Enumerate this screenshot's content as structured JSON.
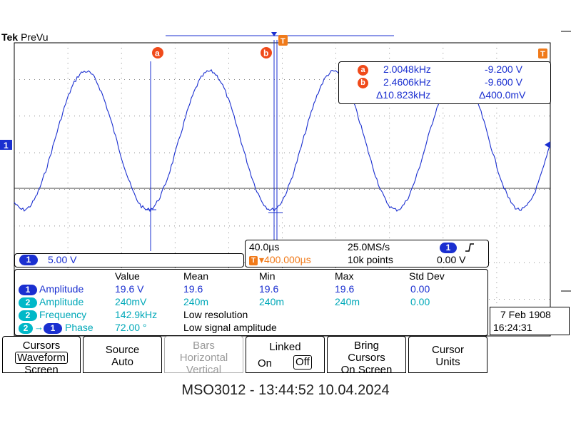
{
  "header": {
    "brand": "Tek",
    "mode": "PreVu"
  },
  "cursor_markers": {
    "a": "a",
    "b": "b",
    "trigger": "T",
    "ch1": "1"
  },
  "cursor_readout": {
    "a_freq": "2.0048kHz",
    "a_volt": "-9.200 V",
    "b_freq": "2.4606kHz",
    "b_volt": "-9.600 V",
    "delta_freq": "Δ10.823kHz",
    "delta_volt": "Δ400.0mV"
  },
  "channel_scale": {
    "channel": "1",
    "value": "5.00 V"
  },
  "timebase": {
    "time_div": "40.0µs",
    "sample_rate": "25.0MS/s",
    "trigger_channel": "1",
    "trigger_slope_icon": "rising-edge-icon",
    "delay": "▾400.000µs",
    "record": "10k points",
    "trigger_level": "0.00 V"
  },
  "measurements": {
    "headers": [
      "Value",
      "Mean",
      "Min",
      "Max",
      "Std Dev"
    ],
    "rows": [
      {
        "ch": "1",
        "ch2": "",
        "name": "Amplitude",
        "value": "19.6 V",
        "mean": "19.6",
        "min": "19.6",
        "max": "19.6",
        "std": "0.00",
        "color": "#1a2fd0"
      },
      {
        "ch": "2",
        "ch2": "",
        "name": "Amplitude",
        "value": "240mV",
        "mean": "240m",
        "min": "240m",
        "max": "240m",
        "std": "0.00",
        "color": "#00a8b8"
      },
      {
        "ch": "2",
        "ch2": "",
        "name": "Frequency",
        "value": "142.9kHz",
        "note": "Low resolution",
        "color": "#00a8b8"
      },
      {
        "ch": "2",
        "ch2": "1",
        "name": "Phase",
        "value": "72.00 °",
        "note": "Low signal amplitude",
        "color": "#00a8b8"
      }
    ]
  },
  "datetime": {
    "date": "7 Feb  1908",
    "time": "16:24:31"
  },
  "menu": {
    "cursors": {
      "line1": "Cursors",
      "line2": "Waveform",
      "line3": "Screen"
    },
    "source": {
      "line1": "Source",
      "line2": "Auto"
    },
    "bars": {
      "line1": "Bars",
      "line2": "Horizontal",
      "line3": "Vertical"
    },
    "linked": {
      "line1": "Linked",
      "on": "On",
      "off": "Off"
    },
    "bring": {
      "line1": "Bring",
      "line2": "Cursors",
      "line3": "On Screen"
    },
    "units": {
      "line1": "Cursor",
      "line2": "Units"
    }
  },
  "footer": "MSO3012 - 13:44:52   10.04.2024",
  "colors": {
    "trace": "#1a2fd0",
    "cursor": "#1a2fd0",
    "marker_orange": "#f07a1a",
    "grid": "#000000",
    "ch2": "#00a8b8"
  }
}
